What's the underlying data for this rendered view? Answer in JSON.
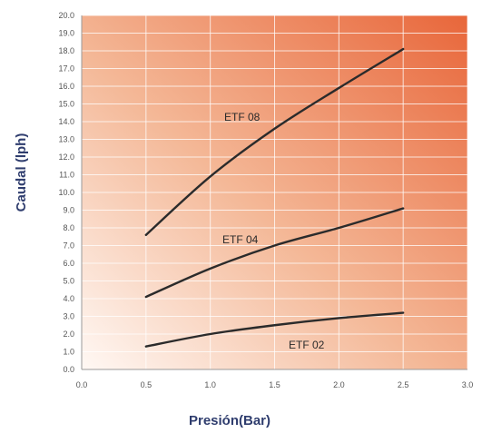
{
  "chart_data": {
    "type": "line",
    "xlabel": "Presión(Bar)",
    "ylabel": "Caudal (lph)",
    "xlim": [
      0,
      3.0
    ],
    "ylim": [
      0,
      20.0
    ],
    "x_ticks": [
      "0.0",
      "0.5",
      "1.0",
      "1.5",
      "2.0",
      "2.5",
      "3.0"
    ],
    "y_ticks": [
      "0.0",
      "1.0",
      "2.0",
      "3.0",
      "4.0",
      "5.0",
      "6.0",
      "7.0",
      "8.0",
      "9.0",
      "10.0",
      "11.0",
      "12.0",
      "13.0",
      "14.0",
      "15.0",
      "16.0",
      "17.0",
      "18.0",
      "19.0",
      "20.0"
    ],
    "grid": true,
    "colors": {
      "background_light": "#fff8f4",
      "background_dark": "#e8663a",
      "line": "#2b2b2b",
      "axis_text": "#2f3d6e"
    },
    "series": [
      {
        "name": "ETF 08",
        "x": [
          0.5,
          1.0,
          1.5,
          2.0,
          2.5
        ],
        "y": [
          7.6,
          10.9,
          13.6,
          15.9,
          18.1
        ]
      },
      {
        "name": "ETF 04",
        "x": [
          0.5,
          1.0,
          1.5,
          2.0,
          2.5
        ],
        "y": [
          4.1,
          5.7,
          7.0,
          8.0,
          9.1
        ]
      },
      {
        "name": "ETF 02",
        "x": [
          0.5,
          1.0,
          1.5,
          2.0,
          2.5
        ],
        "y": [
          1.3,
          2.0,
          2.5,
          2.9,
          3.2
        ]
      }
    ]
  }
}
